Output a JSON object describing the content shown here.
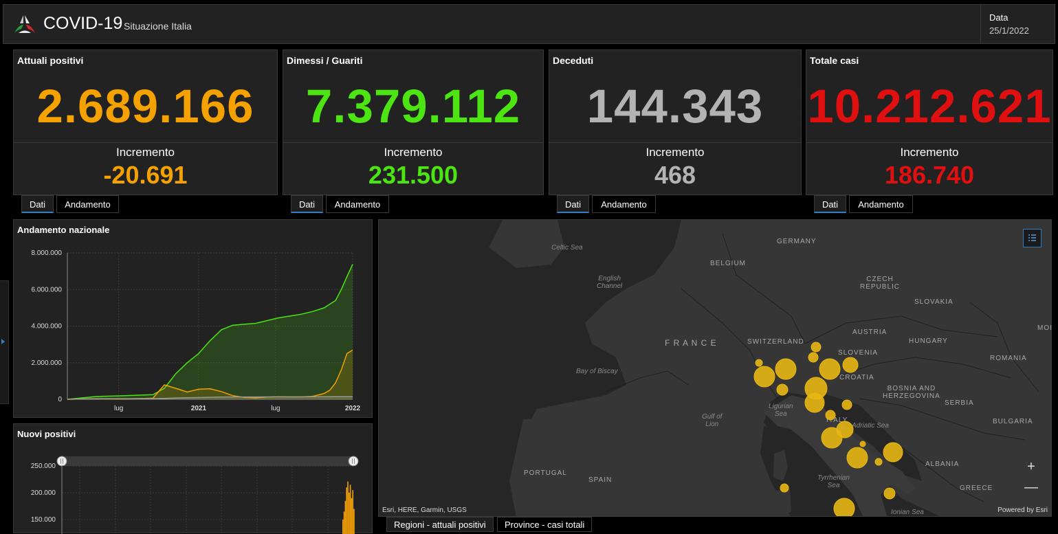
{
  "header": {
    "title": "COVID-19",
    "subtitle": "Situazione Italia",
    "date_label": "Data",
    "date_value": "25/1/2022"
  },
  "stats": [
    {
      "title": "Attuali positivi",
      "value": "2.689.166",
      "inc_label": "Incremento",
      "increment": "-20.691",
      "color": "#f5a100"
    },
    {
      "title": "Dimessi / Guariti",
      "value": "7.379.112",
      "inc_label": "Incremento",
      "increment": "231.500",
      "color": "#4ce412"
    },
    {
      "title": "Deceduti",
      "value": "144.343",
      "inc_label": "Incremento",
      "increment": "468",
      "color": "#b3b3b3"
    },
    {
      "title": "Totale casi",
      "value": "10.212.621",
      "inc_label": "Incremento",
      "increment": "186.740",
      "color": "#e01010"
    }
  ],
  "tabs": {
    "dati": "Dati",
    "andamento": "Andamento"
  },
  "chart_andamento": {
    "title": "Andamento nazionale"
  },
  "chart_nuovi": {
    "title": "Nuovi positivi"
  },
  "chart_data": [
    {
      "type": "area",
      "title": "Andamento nazionale",
      "x_ticks": [
        "lug",
        "2021",
        "lug",
        "2022"
      ],
      "y_ticks": [
        "8.000.000",
        "6.000.000",
        "4.000.000",
        "2.000.000",
        "0"
      ],
      "ylim": [
        0,
        8000000
      ],
      "grid": true,
      "x": [
        0,
        0.1,
        0.2,
        0.3,
        0.34,
        0.38,
        0.42,
        0.46,
        0.5,
        0.54,
        0.58,
        0.62,
        0.66,
        0.7,
        0.74,
        0.78,
        0.82,
        0.86,
        0.9,
        0.92,
        0.94,
        0.96,
        0.98,
        1.0
      ],
      "series": [
        {
          "name": "Dimessi / Guariti",
          "color": "#4ce412",
          "values": [
            0,
            150000,
            200000,
            250000,
            600000,
            1400000,
            2000000,
            2500000,
            3200000,
            3800000,
            4050000,
            4100000,
            4150000,
            4300000,
            4450000,
            4550000,
            4650000,
            4800000,
            5000000,
            5200000,
            5400000,
            6000000,
            6700000,
            7379112
          ]
        },
        {
          "name": "Attuali positivi",
          "color": "#f5a100",
          "values": [
            0,
            30000,
            15000,
            60000,
            790000,
            600000,
            400000,
            550000,
            580000,
            420000,
            200000,
            100000,
            80000,
            120000,
            140000,
            130000,
            130000,
            160000,
            320000,
            500000,
            900000,
            1600000,
            2500000,
            2689166
          ]
        },
        {
          "name": "Deceduti",
          "color": "#9a9a9a",
          "values": [
            0,
            35000,
            35000,
            36000,
            50000,
            70000,
            85000,
            95000,
            110000,
            120000,
            126000,
            128000,
            129000,
            130000,
            131000,
            132000,
            133000,
            134000,
            135000,
            137000,
            139000,
            141000,
            143000,
            144343
          ]
        }
      ]
    },
    {
      "type": "bar",
      "title": "Nuovi positivi",
      "y_ticks": [
        "250.000",
        "200.000",
        "150.000"
      ],
      "ylim": [
        120000,
        260000
      ],
      "series": [
        {
          "name": "Nuovi positivi",
          "color": "#f5a100",
          "values": [
            150000,
            165000,
            185000,
            210000,
            221000,
            200000,
            215000,
            190000,
            205000,
            170000
          ]
        }
      ]
    }
  ],
  "map": {
    "labels": {
      "germany": "GERMANY",
      "belgium": "BELGIUM",
      "czech": "CZECH\nREPUBLIC",
      "slovakia": "SLOVAKIA",
      "austria": "AUSTRIA",
      "hungary": "HUNGARY",
      "romania": "ROMANIA",
      "switzerland": "SWITZERLAND",
      "slovenia": "SLOVENIA",
      "croatia": "CROATIA",
      "bosnia": "BOSNIA AND\nHERZEGOVINA",
      "serbia": "SERBIA",
      "bulgaria": "BULGARIA",
      "albania": "ALBANIA",
      "greece": "GREECE",
      "france": "F R A N C E",
      "portugal": "PORTUGAL",
      "spain": "SPAIN",
      "italy": "ITALY",
      "mol": "MOL",
      "celtic": "Celtic Sea",
      "channel": "English\nChannel",
      "biscay": "Bay of Biscay",
      "lion": "Gulf of\nLion",
      "ligurian": "Ligurian\nSea",
      "adriatic": "Adriatic Sea",
      "tyrrhenian": "Tyrrhenian\nSea",
      "ionian": "Ionian Sea"
    },
    "attribution_left": "Esri, HERE, Garmin, USGS",
    "attribution_right": "Powered by Esri",
    "zoom_in": "+",
    "zoom_out": "—",
    "bubble_color": "#e8b714"
  },
  "map_tabs": [
    "Regioni - attuali positivi",
    "Province - casi totali"
  ]
}
